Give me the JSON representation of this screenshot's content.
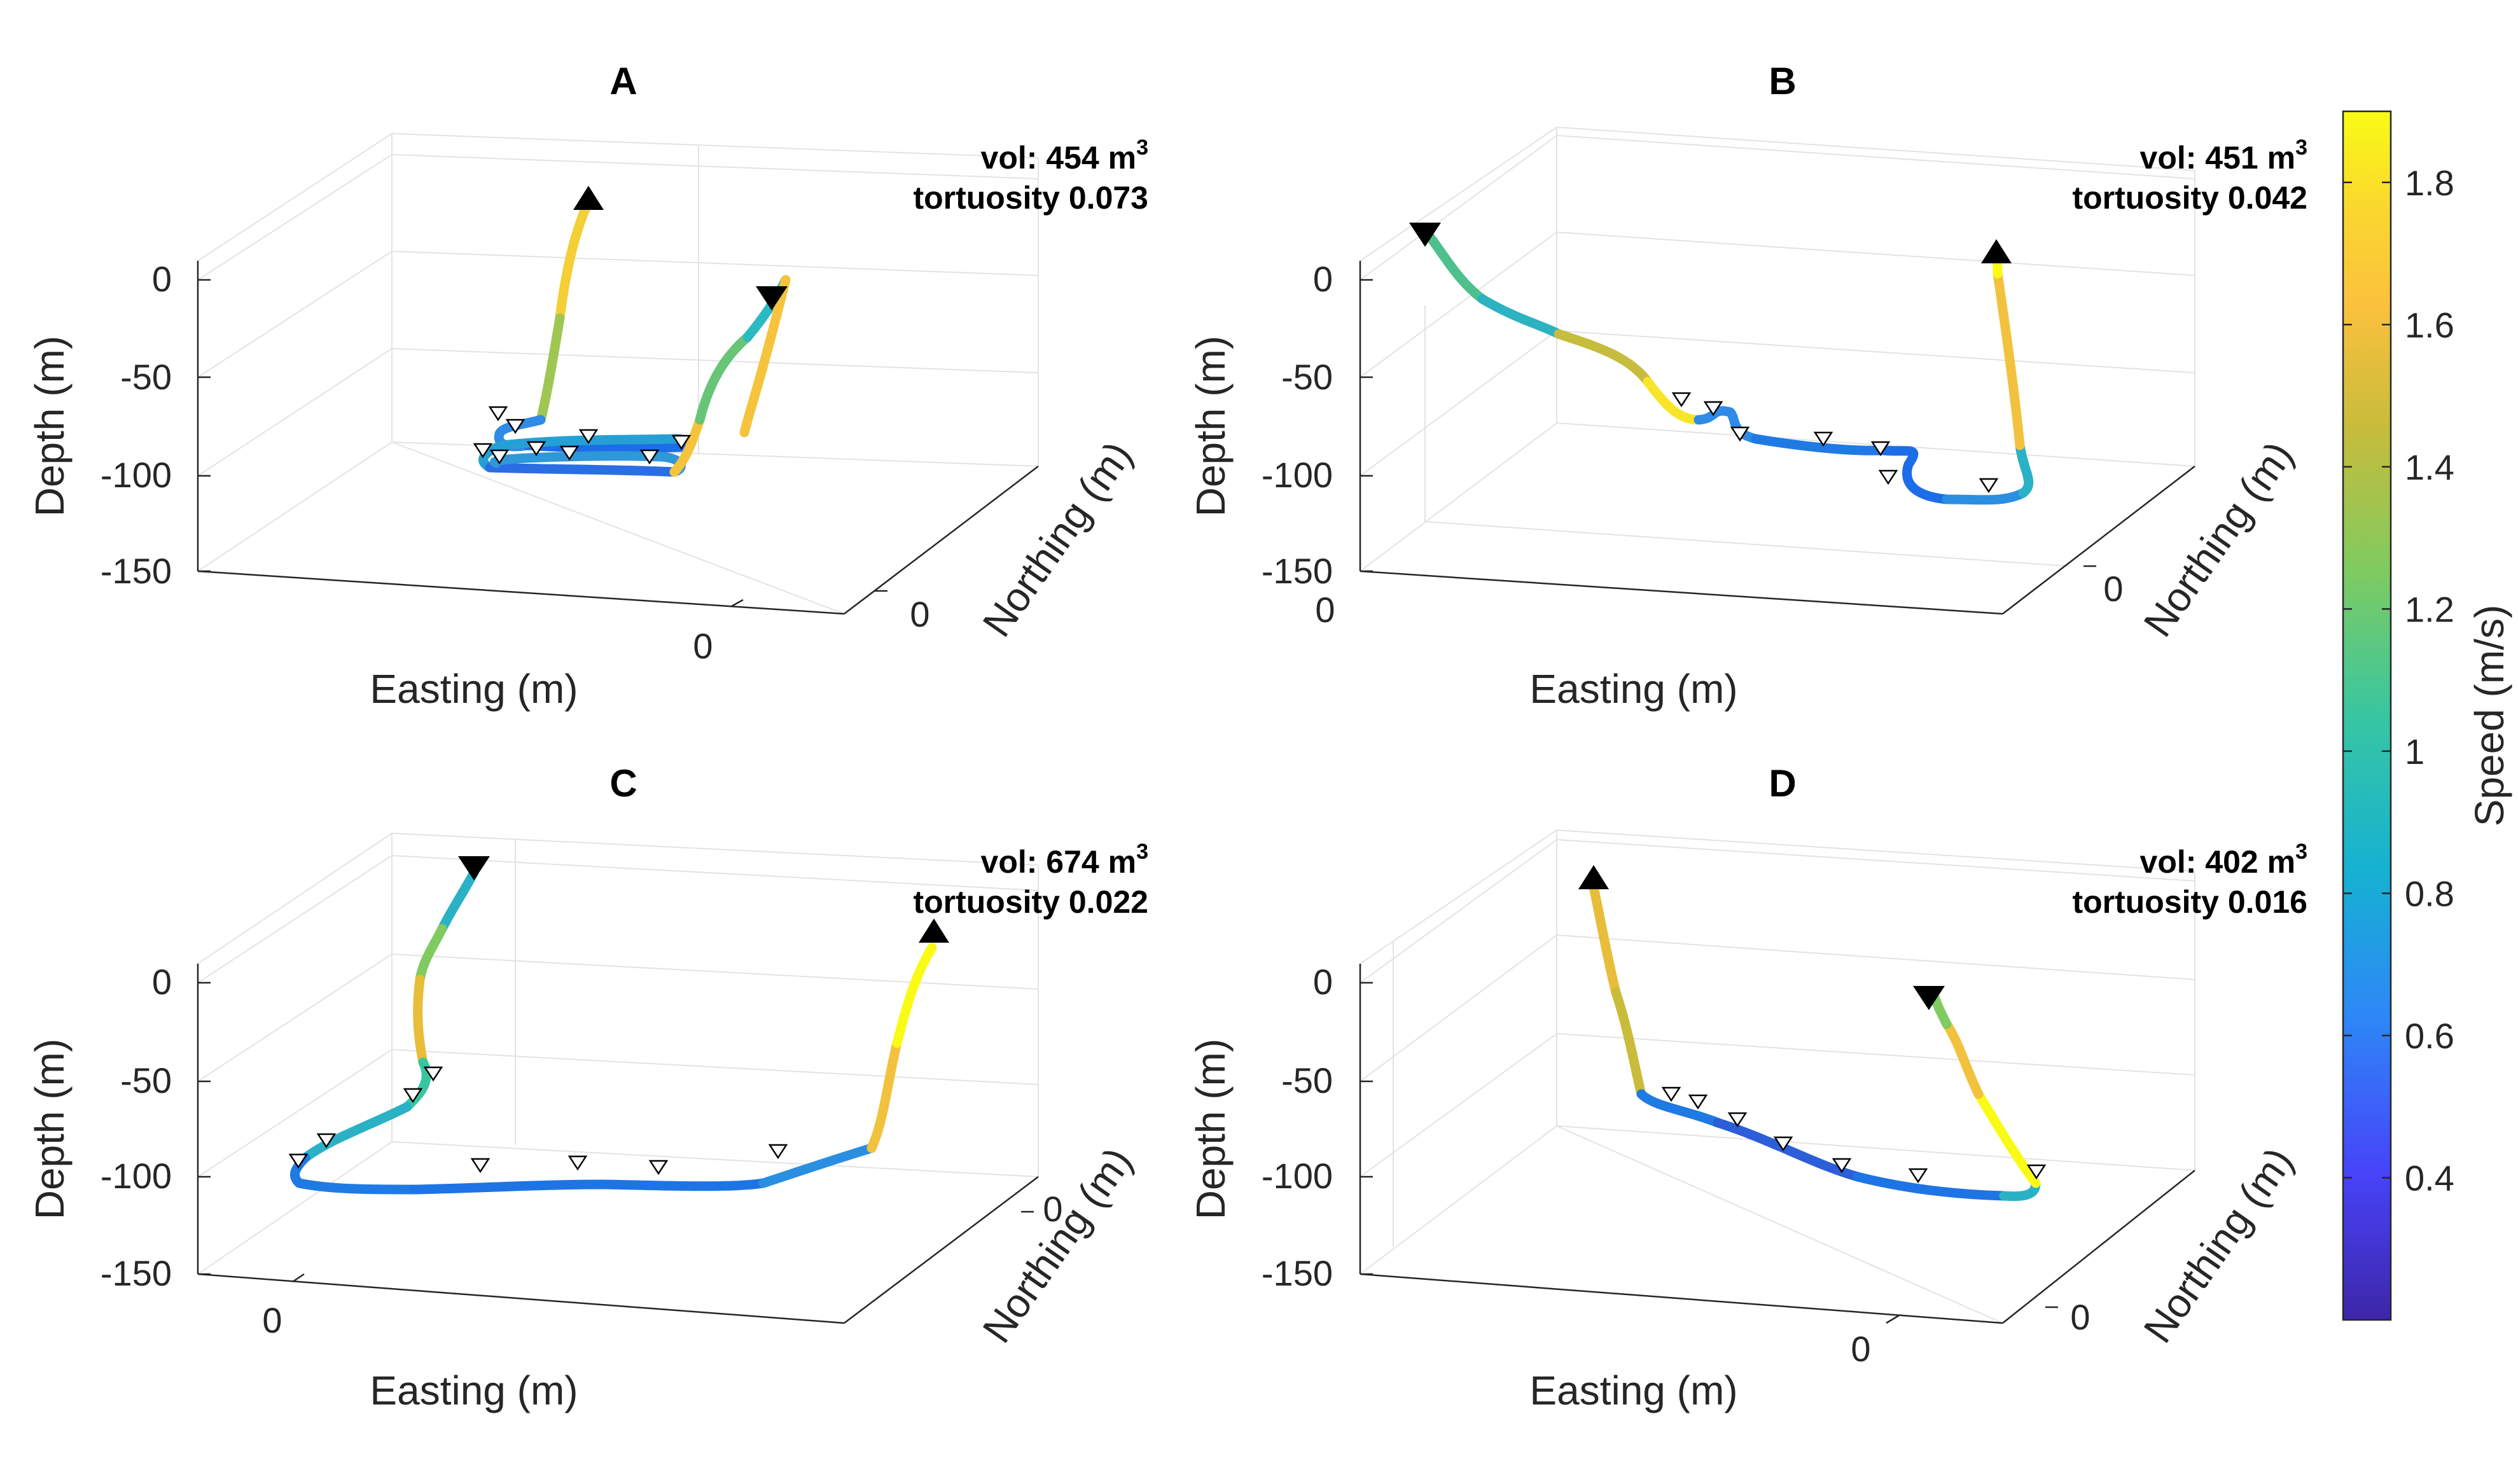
{
  "chart_data": [
    {
      "type": "line",
      "title": "A",
      "xlabel": "Easting (m)",
      "ylabel": "Depth (m)",
      "zlabel": "Northing (m)",
      "depth_ticks": [
        "0",
        "-50",
        "-100",
        "-150"
      ],
      "easting_tick": "0",
      "northing_tick": "0",
      "annotation": {
        "vol_prefix": "vol: 454 m",
        "vol_exp": "3",
        "tortuosity": "tortuosity 0.073"
      },
      "grid": true
    },
    {
      "type": "line",
      "title": "B",
      "xlabel": "Easting (m)",
      "ylabel": "Depth (m)",
      "zlabel": "Northing (m)",
      "depth_ticks": [
        "0",
        "-50",
        "-100",
        "-150"
      ],
      "easting_tick": "0",
      "northing_tick": "0",
      "annotation": {
        "vol_prefix": "vol: 451 m",
        "vol_exp": "3",
        "tortuosity": "tortuosity 0.042"
      },
      "grid": true
    },
    {
      "type": "line",
      "title": "C",
      "xlabel": "Easting (m)",
      "ylabel": "Depth (m)",
      "zlabel": "Northing (m)",
      "depth_ticks": [
        "0",
        "-50",
        "-100",
        "-150"
      ],
      "easting_tick": "0",
      "northing_tick": "0",
      "annotation": {
        "vol_prefix": "vol: 674 m",
        "vol_exp": "3",
        "tortuosity": "tortuosity 0.022"
      },
      "grid": true
    },
    {
      "type": "line",
      "title": "D",
      "xlabel": "Easting (m)",
      "ylabel": "Depth (m)",
      "zlabel": "Northing (m)",
      "depth_ticks": [
        "0",
        "-50",
        "-100",
        "-150"
      ],
      "easting_tick": "0",
      "northing_tick": "0",
      "annotation": {
        "vol_prefix": "vol: 402 m",
        "vol_exp": "3",
        "tortuosity": "tortuosity 0.016"
      },
      "grid": true
    }
  ],
  "colorbar": {
    "label": "Speed (m/s)",
    "range": [
      0.2,
      1.9
    ],
    "ticks": [
      "0.4",
      "0.6",
      "0.8",
      "1",
      "1.2",
      "1.4",
      "1.6",
      "1.8"
    ],
    "colormap": [
      "#3e26a8",
      "#4743f8",
      "#2e87f7",
      "#15b1d3",
      "#38c6a1",
      "#7fcb60",
      "#c9bc3b",
      "#fbc13d",
      "#fad72e",
      "#f9fb15"
    ]
  }
}
